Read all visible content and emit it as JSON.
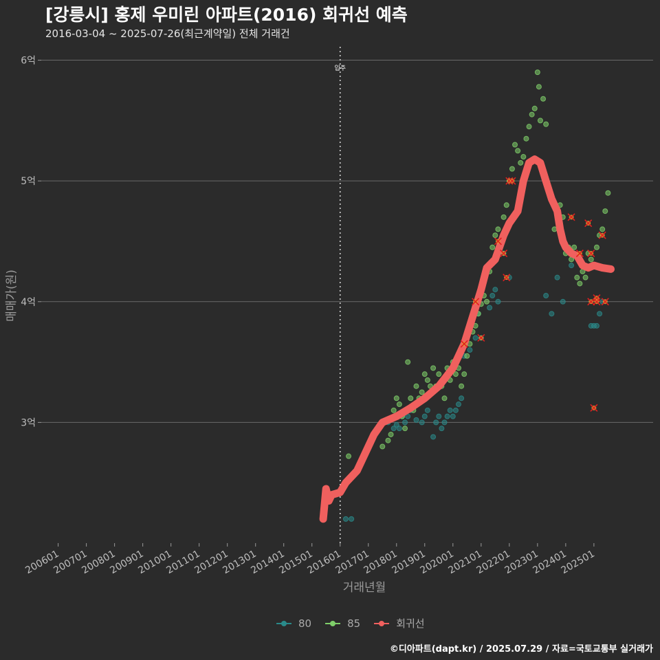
{
  "title": "[강릉시] 홍제 우미린 아파트(2016) 회귀선 예측",
  "subtitle": "2016-03-04 ~ 2025-07-26(최근계약일) 전체 거래건",
  "footer": "©디아파트(dapt.kr) / 2025.07.29 / 자료=국토교통부 실거래가",
  "colors": {
    "s80": "#2a8a8a",
    "s85": "#7fcf6a",
    "regression": "#f0605e",
    "outlier": "#e02020"
  },
  "chart_data": {
    "type": "scatter",
    "xlabel": "거래년월",
    "ylabel": "매매가(원)",
    "x_ticks": [
      "200601",
      "200701",
      "200801",
      "200901",
      "201001",
      "201101",
      "201201",
      "201301",
      "201401",
      "201501",
      "201601",
      "201701",
      "201801",
      "201901",
      "202001",
      "202101",
      "202201",
      "202301",
      "202401",
      "202501"
    ],
    "y_ticks": [
      {
        "value": 3,
        "label": "3억"
      },
      {
        "value": 4,
        "label": "4억"
      },
      {
        "value": 5,
        "label": "5억"
      },
      {
        "value": 6,
        "label": "6억"
      }
    ],
    "xlim": [
      2005.4,
      2027.1
    ],
    "ylim": [
      2.0,
      6.1
    ],
    "y_unit": "억원",
    "annotation": {
      "x": 2016.0,
      "label": "입주"
    },
    "legend": [
      {
        "key": "s80",
        "label": "80"
      },
      {
        "key": "s85",
        "label": "85"
      },
      {
        "key": "regression",
        "label": "회귀선"
      }
    ],
    "series": [
      {
        "name": "80",
        "points": [
          [
            2016.2,
            2.2
          ],
          [
            2016.4,
            2.2
          ],
          [
            2017.7,
            3.0
          ],
          [
            2017.9,
            2.95
          ],
          [
            2018.0,
            2.98
          ],
          [
            2018.1,
            2.95
          ],
          [
            2018.2,
            3.05
          ],
          [
            2018.3,
            3.0
          ],
          [
            2018.4,
            3.05
          ],
          [
            2018.5,
            3.1
          ],
          [
            2018.7,
            3.02
          ],
          [
            2018.9,
            3.0
          ],
          [
            2019.0,
            3.05
          ],
          [
            2019.1,
            3.1
          ],
          [
            2019.3,
            2.88
          ],
          [
            2019.4,
            3.0
          ],
          [
            2019.5,
            3.05
          ],
          [
            2019.6,
            2.95
          ],
          [
            2019.7,
            3.0
          ],
          [
            2019.8,
            3.05
          ],
          [
            2019.9,
            3.1
          ],
          [
            2020.0,
            3.05
          ],
          [
            2020.1,
            3.1
          ],
          [
            2020.2,
            3.15
          ],
          [
            2020.3,
            3.2
          ],
          [
            2020.4,
            3.55
          ],
          [
            2020.6,
            3.6
          ],
          [
            2020.8,
            3.7
          ],
          [
            2020.9,
            3.9
          ],
          [
            2021.0,
            3.7
          ],
          [
            2021.3,
            3.95
          ],
          [
            2021.4,
            4.05
          ],
          [
            2021.5,
            4.1
          ],
          [
            2021.6,
            4.0
          ],
          [
            2021.8,
            4.4
          ],
          [
            2022.0,
            4.2
          ],
          [
            2023.3,
            4.05
          ],
          [
            2023.5,
            3.9
          ],
          [
            2023.7,
            4.2
          ],
          [
            2023.9,
            4.0
          ],
          [
            2024.2,
            4.3
          ],
          [
            2024.9,
            3.8
          ],
          [
            2025.0,
            3.8
          ],
          [
            2025.1,
            3.8
          ],
          [
            2025.2,
            3.9
          ],
          [
            2025.3,
            4.0
          ]
        ]
      },
      {
        "name": "85",
        "points": [
          [
            2016.3,
            2.72
          ],
          [
            2017.5,
            2.8
          ],
          [
            2017.7,
            2.85
          ],
          [
            2017.8,
            2.9
          ],
          [
            2017.9,
            3.1
          ],
          [
            2018.0,
            3.2
          ],
          [
            2018.1,
            3.15
          ],
          [
            2018.2,
            3.05
          ],
          [
            2018.3,
            2.95
          ],
          [
            2018.4,
            3.5
          ],
          [
            2018.5,
            3.2
          ],
          [
            2018.6,
            3.1
          ],
          [
            2018.7,
            3.3
          ],
          [
            2018.8,
            3.2
          ],
          [
            2018.9,
            3.25
          ],
          [
            2019.0,
            3.4
          ],
          [
            2019.1,
            3.35
          ],
          [
            2019.2,
            3.3
          ],
          [
            2019.3,
            3.45
          ],
          [
            2019.4,
            3.3
          ],
          [
            2019.5,
            3.4
          ],
          [
            2019.6,
            3.3
          ],
          [
            2019.7,
            3.2
          ],
          [
            2019.8,
            3.45
          ],
          [
            2019.9,
            3.35
          ],
          [
            2020.0,
            3.5
          ],
          [
            2020.1,
            3.4
          ],
          [
            2020.2,
            3.45
          ],
          [
            2020.3,
            3.3
          ],
          [
            2020.4,
            3.4
          ],
          [
            2020.5,
            3.55
          ],
          [
            2020.6,
            3.65
          ],
          [
            2020.7,
            3.75
          ],
          [
            2020.8,
            3.8
          ],
          [
            2020.9,
            3.9
          ],
          [
            2021.0,
            3.98
          ],
          [
            2021.1,
            4.05
          ],
          [
            2021.2,
            4.0
          ],
          [
            2021.3,
            4.25
          ],
          [
            2021.4,
            4.45
          ],
          [
            2021.5,
            4.55
          ],
          [
            2021.6,
            4.6
          ],
          [
            2021.7,
            4.5
          ],
          [
            2021.8,
            4.7
          ],
          [
            2021.9,
            4.8
          ],
          [
            2022.0,
            5.0
          ],
          [
            2022.1,
            5.1
          ],
          [
            2022.2,
            5.3
          ],
          [
            2022.3,
            5.25
          ],
          [
            2022.4,
            5.15
          ],
          [
            2022.5,
            5.2
          ],
          [
            2022.6,
            5.35
          ],
          [
            2022.7,
            5.45
          ],
          [
            2022.8,
            5.55
          ],
          [
            2022.9,
            5.6
          ],
          [
            2023.0,
            5.9
          ],
          [
            2023.05,
            5.78
          ],
          [
            2023.1,
            5.5
          ],
          [
            2023.2,
            5.68
          ],
          [
            2023.3,
            5.47
          ],
          [
            2023.6,
            4.6
          ],
          [
            2023.8,
            4.8
          ],
          [
            2023.9,
            4.7
          ],
          [
            2024.0,
            4.4
          ],
          [
            2024.1,
            4.45
          ],
          [
            2024.2,
            4.35
          ],
          [
            2024.3,
            4.45
          ],
          [
            2024.4,
            4.2
          ],
          [
            2024.5,
            4.15
          ],
          [
            2024.6,
            4.25
          ],
          [
            2024.7,
            4.2
          ],
          [
            2024.8,
            4.4
          ],
          [
            2024.9,
            4.35
          ],
          [
            2025.0,
            4.3
          ],
          [
            2025.1,
            4.45
          ],
          [
            2025.2,
            4.55
          ],
          [
            2025.3,
            4.6
          ],
          [
            2025.4,
            4.75
          ],
          [
            2025.5,
            4.9
          ]
        ]
      }
    ],
    "outliers": [
      [
        2020.4,
        3.65
      ],
      [
        2020.8,
        4.0
      ],
      [
        2021.0,
        3.7
      ],
      [
        2021.6,
        4.5
      ],
      [
        2021.8,
        4.4
      ],
      [
        2021.9,
        4.2
      ],
      [
        2022.0,
        5.0
      ],
      [
        2022.1,
        5.0
      ],
      [
        2024.2,
        4.7
      ],
      [
        2024.5,
        4.4
      ],
      [
        2024.8,
        4.65
      ],
      [
        2024.9,
        4.4
      ],
      [
        2024.9,
        4.0
      ],
      [
        2025.1,
        4.0
      ],
      [
        2025.1,
        4.03
      ],
      [
        2025.3,
        4.55
      ],
      [
        2025.4,
        4.0
      ],
      [
        2025.0,
        3.12
      ]
    ],
    "regression": {
      "name": "회귀선",
      "points": [
        [
          2015.4,
          2.2
        ],
        [
          2015.5,
          2.45
        ],
        [
          2015.6,
          2.35
        ],
        [
          2015.7,
          2.4
        ],
        [
          2016.0,
          2.42
        ],
        [
          2016.2,
          2.5
        ],
        [
          2016.4,
          2.55
        ],
        [
          2016.6,
          2.6
        ],
        [
          2016.8,
          2.7
        ],
        [
          2017.0,
          2.8
        ],
        [
          2017.2,
          2.9
        ],
        [
          2017.5,
          3.0
        ],
        [
          2018.0,
          3.05
        ],
        [
          2018.5,
          3.12
        ],
        [
          2019.0,
          3.2
        ],
        [
          2019.5,
          3.3
        ],
        [
          2020.0,
          3.45
        ],
        [
          2020.4,
          3.65
        ],
        [
          2020.8,
          3.95
        ],
        [
          2021.0,
          4.1
        ],
        [
          2021.2,
          4.28
        ],
        [
          2021.5,
          4.35
        ],
        [
          2021.8,
          4.55
        ],
        [
          2022.0,
          4.65
        ],
        [
          2022.3,
          4.75
        ],
        [
          2022.5,
          5.0
        ],
        [
          2022.7,
          5.15
        ],
        [
          2022.9,
          5.18
        ],
        [
          2023.1,
          5.15
        ],
        [
          2023.3,
          5.0
        ],
        [
          2023.5,
          4.85
        ],
        [
          2023.7,
          4.75
        ],
        [
          2023.8,
          4.6
        ],
        [
          2023.9,
          4.5
        ],
        [
          2024.0,
          4.45
        ],
        [
          2024.2,
          4.4
        ],
        [
          2024.4,
          4.38
        ],
        [
          2024.6,
          4.3
        ],
        [
          2024.8,
          4.28
        ],
        [
          2025.0,
          4.3
        ],
        [
          2025.3,
          4.28
        ],
        [
          2025.6,
          4.27
        ]
      ]
    }
  }
}
